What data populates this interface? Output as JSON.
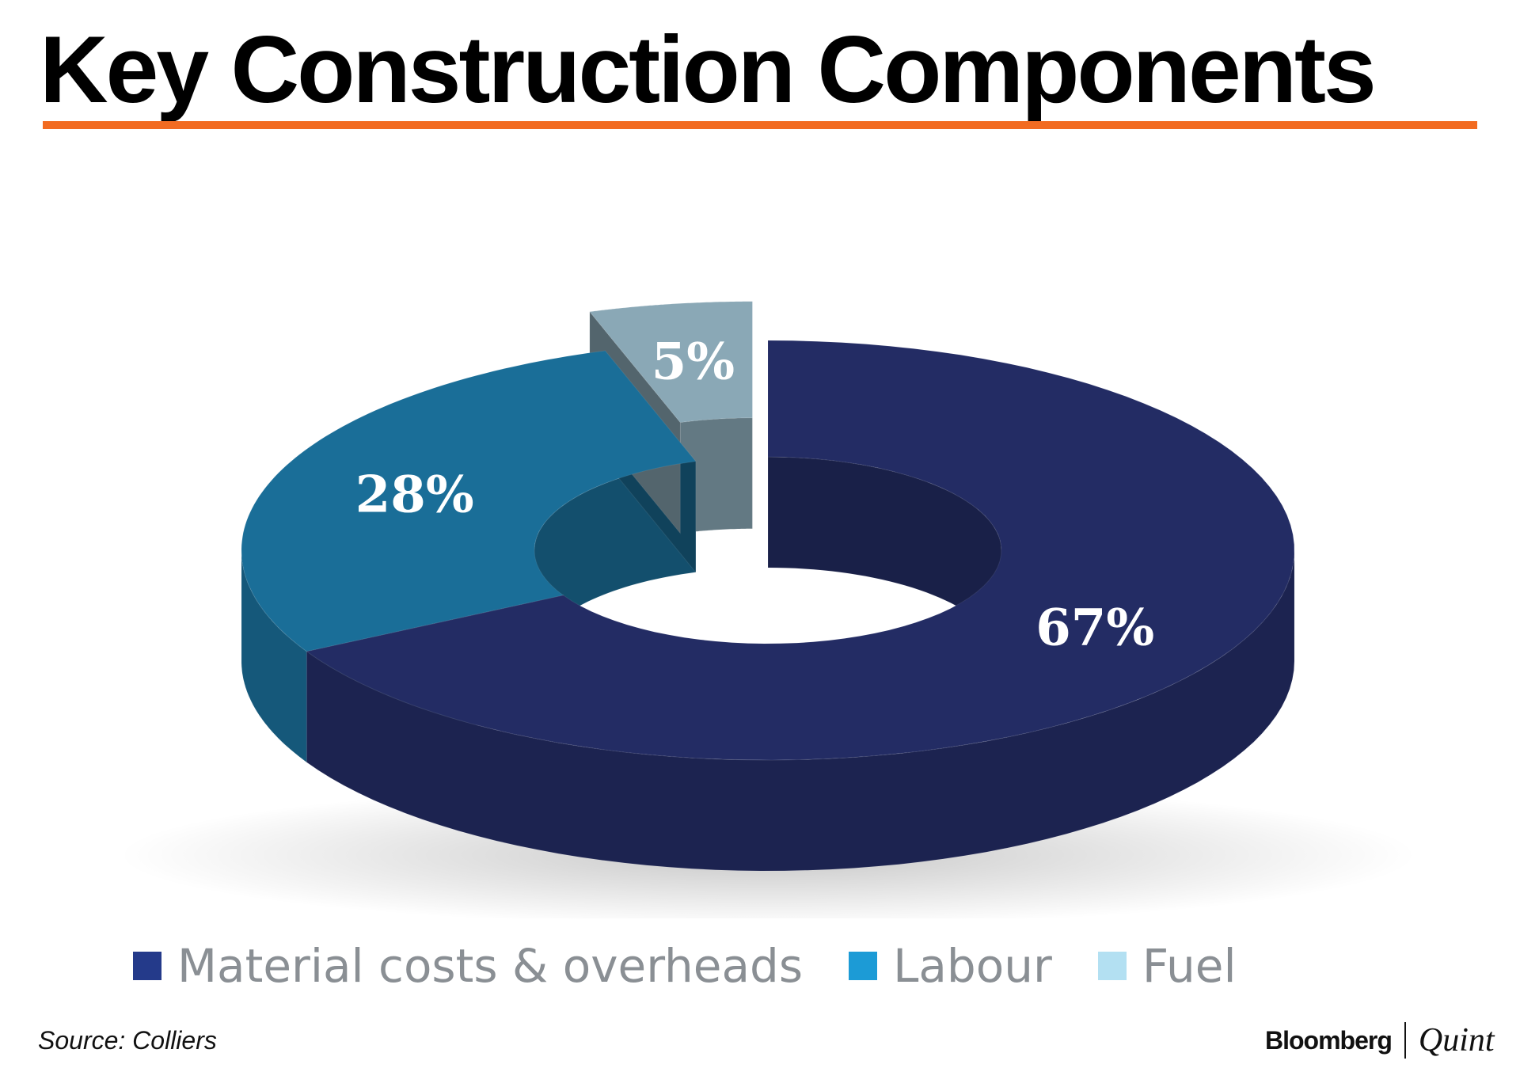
{
  "title": "Key Construction Components",
  "accent_color": "#f26b21",
  "chart_data": {
    "type": "pie",
    "variant": "3d-donut",
    "labels": [
      "Material costs & overheads",
      "Labour",
      "Fuel"
    ],
    "values": [
      67,
      28,
      5
    ],
    "data_labels": [
      "67%",
      "28%",
      "5%"
    ],
    "colors": [
      "#232c64",
      "#1a6e98",
      "#8aa8b6"
    ],
    "legend_colors": [
      "#243a8a",
      "#1c9bd6",
      "#b3e0f2"
    ],
    "exploded": [
      "Fuel"
    ],
    "legend_position": "bottom"
  },
  "source": "Source: Colliers",
  "brand": {
    "main": "Bloomberg",
    "sub": "Quint"
  }
}
